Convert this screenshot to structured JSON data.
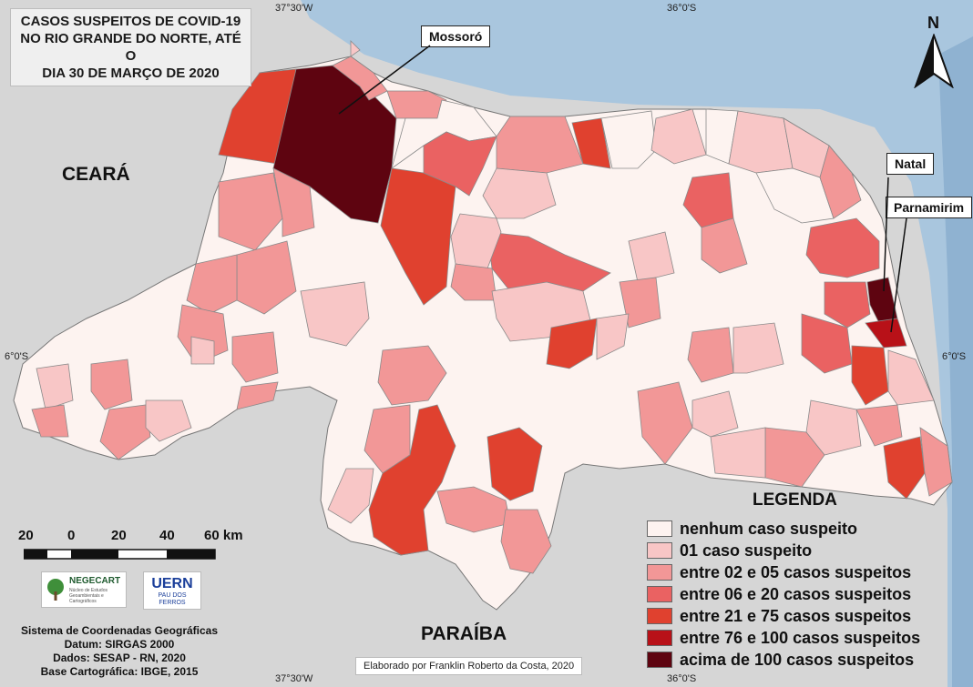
{
  "title": {
    "line1": "CASOS SUSPEITOS DE COVID-19",
    "line2": "NO RIO GRANDE DO NORTE, ATÉ O",
    "line3": "DIA 30 DE MARÇO DE 2020"
  },
  "coordinates": {
    "top_left": "37°30'W",
    "top_right": "36°0'S",
    "bottom_left": "37°30'W",
    "bottom_right": "36°0'S",
    "left_lat": "6°0'S",
    "right_lat": "6°0'S"
  },
  "north_arrow": {
    "label": "N"
  },
  "regions": {
    "ceara": "CEARÁ",
    "paraiba": "PARAÍBA"
  },
  "callouts": {
    "mossoro": "Mossoró",
    "natal": "Natal",
    "parnamirim": "Parnamirim"
  },
  "legend": {
    "title": "LEGENDA",
    "items": [
      {
        "label": "nenhum caso suspeito",
        "color": "#fdf3f0"
      },
      {
        "label": "01 caso suspeito",
        "color": "#f8c6c6"
      },
      {
        "label": "entre 02 e 05 casos suspeitos",
        "color": "#f29797"
      },
      {
        "label": "entre 06 e 20 casos suspeitos",
        "color": "#ea6262"
      },
      {
        "label": "entre 21 e 75 casos suspeitos",
        "color": "#e0412f"
      },
      {
        "label": "entre 76 e 100 casos suspeitos",
        "color": "#b81118"
      },
      {
        "label": "acima de 100 casos suspeitos",
        "color": "#5e0410"
      }
    ]
  },
  "scale_bar": {
    "labels": [
      "20",
      "0",
      "20",
      "40",
      "60 km"
    ]
  },
  "logos": {
    "negecart": "NEGECART",
    "negecart_sub": "Núcleo de Estudos Geoambientais e Cartográficos",
    "uern": "UERN",
    "uern_sub": "PAU DOS FERROS"
  },
  "metadata": {
    "system": "Sistema de Coordenadas Geográficas",
    "datum": "Datum: SIRGAS 2000",
    "data": "Dados: SESAP - RN, 2020",
    "base": "Base Cartográfica: IBGE, 2015"
  },
  "credit": "Elaborado por Franklin Roberto da Costa, 2020"
}
